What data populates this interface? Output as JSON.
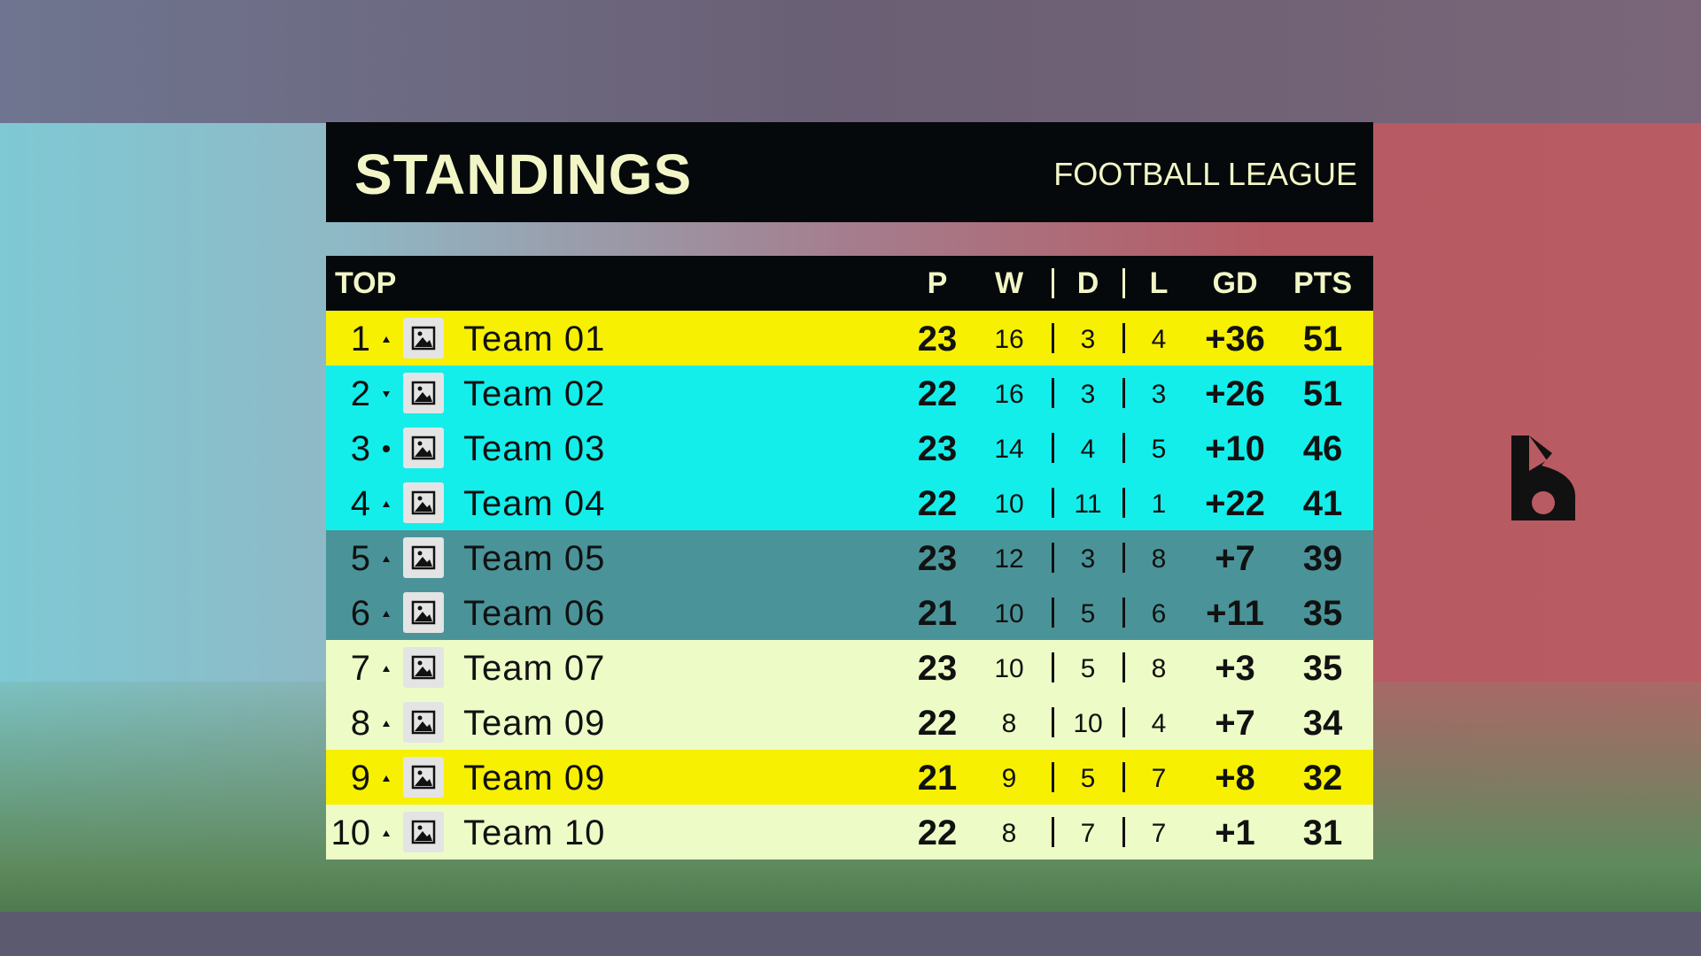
{
  "header": {
    "title": "STANDINGS",
    "subtitle": "FOOTBALL LEAGUE"
  },
  "table": {
    "columns": [
      "TOP",
      "P",
      "W",
      "D",
      "L",
      "GD",
      "PTS"
    ],
    "rows": [
      [
        1,
        "Team 01",
        23,
        16,
        3,
        4,
        "+36",
        51
      ],
      [
        2,
        "Team 02",
        22,
        16,
        3,
        3,
        "+26",
        51
      ],
      [
        3,
        "Team 03",
        23,
        14,
        4,
        5,
        "+10",
        46
      ],
      [
        4,
        "Team 04",
        22,
        10,
        11,
        1,
        "+22",
        41
      ],
      [
        5,
        "Team 05",
        23,
        12,
        3,
        8,
        "+7",
        39
      ],
      [
        6,
        "Team 06",
        21,
        10,
        5,
        6,
        "+11",
        35
      ],
      [
        7,
        "Team 07",
        23,
        10,
        5,
        8,
        "+3",
        35
      ],
      [
        8,
        "Team 09",
        22,
        8,
        10,
        4,
        "+7",
        34
      ],
      [
        9,
        "Team 09",
        21,
        9,
        5,
        7,
        "+8",
        32
      ],
      [
        10,
        "Team 10",
        22,
        8,
        7,
        7,
        "+1",
        31
      ]
    ]
  }
}
